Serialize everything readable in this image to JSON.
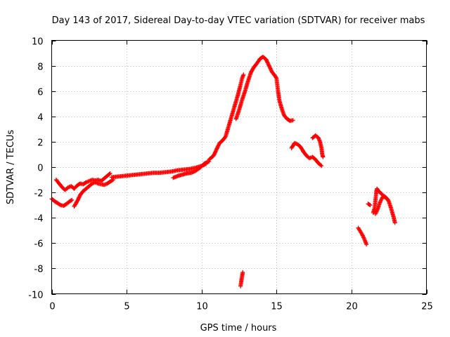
{
  "chart_data": {
    "type": "scatter",
    "title": "Day 143 of 2017, Sidereal Day-to-day VTEC variation (SDTVAR) for receiver mabs",
    "xlabel": "GPS time / hours",
    "ylabel": "SDTVAR / TECUs",
    "xlim": [
      0,
      25
    ],
    "ylim": [
      -10,
      10
    ],
    "xticks": [
      0,
      5,
      10,
      15,
      20,
      25
    ],
    "yticks": [
      -10,
      -8,
      -6,
      -4,
      -2,
      0,
      2,
      4,
      6,
      8,
      10
    ],
    "grid": true,
    "marker": "plus",
    "series": [
      {
        "name": "SDTVAR",
        "color": "#ff0000",
        "segments": [
          [
            [
              0.0,
              -2.5
            ],
            [
              0.2,
              -2.7
            ],
            [
              0.4,
              -2.85
            ],
            [
              0.6,
              -3.0
            ],
            [
              0.8,
              -3.05
            ],
            [
              1.0,
              -2.9
            ],
            [
              1.2,
              -2.7
            ],
            [
              1.35,
              -2.6
            ]
          ],
          [
            [
              0.3,
              -1.0
            ],
            [
              0.5,
              -1.3
            ],
            [
              0.7,
              -1.6
            ],
            [
              0.9,
              -1.8
            ],
            [
              1.1,
              -1.6
            ],
            [
              1.3,
              -1.5
            ],
            [
              1.5,
              -1.7
            ],
            [
              1.7,
              -1.45
            ],
            [
              1.9,
              -1.3
            ],
            [
              2.1,
              -1.35
            ],
            [
              2.3,
              -1.2
            ],
            [
              2.5,
              -1.1
            ],
            [
              2.7,
              -1.0
            ],
            [
              2.9,
              -1.05
            ],
            [
              3.1,
              -1.0
            ],
            [
              3.3,
              -1.1
            ],
            [
              3.5,
              -0.9
            ],
            [
              3.7,
              -0.7
            ],
            [
              3.9,
              -0.5
            ]
          ],
          [
            [
              1.5,
              -3.1
            ],
            [
              1.7,
              -2.7
            ],
            [
              1.9,
              -2.2
            ],
            [
              2.1,
              -1.9
            ],
            [
              2.3,
              -1.7
            ],
            [
              2.5,
              -1.5
            ],
            [
              2.7,
              -1.3
            ],
            [
              2.9,
              -1.2
            ],
            [
              3.1,
              -1.3
            ],
            [
              3.3,
              -1.35
            ],
            [
              3.5,
              -1.4
            ],
            [
              3.7,
              -1.3
            ],
            [
              3.9,
              -1.15
            ],
            [
              4.1,
              -1.0
            ]
          ],
          [
            [
              4.0,
              -0.8
            ],
            [
              4.4,
              -0.75
            ],
            [
              4.8,
              -0.7
            ],
            [
              5.2,
              -0.65
            ],
            [
              5.6,
              -0.6
            ],
            [
              6.0,
              -0.55
            ],
            [
              6.4,
              -0.5
            ],
            [
              6.8,
              -0.45
            ],
            [
              7.2,
              -0.45
            ],
            [
              7.6,
              -0.4
            ],
            [
              8.0,
              -0.35
            ],
            [
              8.4,
              -0.25
            ],
            [
              8.8,
              -0.2
            ],
            [
              9.2,
              -0.15
            ],
            [
              9.6,
              -0.05
            ],
            [
              10.0,
              0.1
            ],
            [
              10.3,
              0.25
            ]
          ],
          [
            [
              8.1,
              -0.85
            ],
            [
              8.4,
              -0.7
            ],
            [
              8.7,
              -0.6
            ],
            [
              9.0,
              -0.5
            ],
            [
              9.3,
              -0.45
            ],
            [
              9.6,
              -0.3
            ],
            [
              9.9,
              -0.05
            ],
            [
              10.2,
              0.3
            ],
            [
              10.5,
              0.45
            ]
          ],
          [
            [
              10.5,
              0.6
            ],
            [
              10.8,
              0.9
            ],
            [
              11.0,
              1.4
            ],
            [
              11.2,
              1.9
            ],
            [
              11.4,
              2.1
            ],
            [
              11.6,
              2.4
            ],
            [
              11.8,
              3.2
            ],
            [
              12.0,
              4.0
            ],
            [
              12.2,
              4.8
            ],
            [
              12.4,
              5.6
            ],
            [
              12.6,
              6.5
            ],
            [
              12.7,
              7.0
            ],
            [
              12.8,
              7.3
            ]
          ],
          [
            [
              12.3,
              3.8
            ],
            [
              12.5,
              4.5
            ],
            [
              12.7,
              5.3
            ],
            [
              12.9,
              6.0
            ],
            [
              13.1,
              6.8
            ],
            [
              13.3,
              7.5
            ],
            [
              13.5,
              7.9
            ],
            [
              13.7,
              8.2
            ],
            [
              13.9,
              8.55
            ],
            [
              14.1,
              8.7
            ],
            [
              14.3,
              8.5
            ],
            [
              14.5,
              8.0
            ],
            [
              14.7,
              7.5
            ],
            [
              14.9,
              7.2
            ],
            [
              15.0,
              7.0
            ],
            [
              15.1,
              6.0
            ],
            [
              15.2,
              5.2
            ],
            [
              15.35,
              4.6
            ],
            [
              15.5,
              4.1
            ],
            [
              15.7,
              3.8
            ],
            [
              15.9,
              3.65
            ],
            [
              16.1,
              3.7
            ]
          ],
          [
            [
              16.0,
              1.5
            ],
            [
              16.2,
              1.9
            ],
            [
              16.4,
              1.8
            ],
            [
              16.6,
              1.6
            ],
            [
              16.8,
              1.2
            ],
            [
              17.0,
              0.9
            ],
            [
              17.2,
              0.7
            ],
            [
              17.4,
              0.8
            ],
            [
              17.6,
              0.6
            ],
            [
              17.8,
              0.3
            ],
            [
              18.0,
              0.1
            ]
          ],
          [
            [
              17.4,
              2.3
            ],
            [
              17.6,
              2.5
            ],
            [
              17.8,
              2.3
            ],
            [
              17.9,
              2.0
            ],
            [
              18.0,
              1.5
            ],
            [
              18.05,
              1.0
            ],
            [
              18.1,
              0.8
            ]
          ],
          [
            [
              12.6,
              -9.4
            ],
            [
              12.65,
              -9.0
            ],
            [
              12.7,
              -8.6
            ],
            [
              12.75,
              -8.3
            ]
          ],
          [
            [
              20.45,
              -4.8
            ],
            [
              20.6,
              -5.1
            ],
            [
              20.75,
              -5.4
            ],
            [
              20.9,
              -5.8
            ],
            [
              21.0,
              -6.1
            ]
          ],
          [
            [
              21.1,
              -2.9
            ],
            [
              21.25,
              -3.0
            ]
          ],
          [
            [
              21.45,
              -3.6
            ],
            [
              21.55,
              -3.2
            ],
            [
              21.6,
              -2.6
            ],
            [
              21.65,
              -2.0
            ],
            [
              21.7,
              -1.7
            ],
            [
              21.8,
              -1.9
            ],
            [
              21.9,
              -2.0
            ],
            [
              22.0,
              -2.1
            ],
            [
              22.15,
              -2.3
            ],
            [
              22.3,
              -2.4
            ],
            [
              22.45,
              -2.6
            ],
            [
              22.6,
              -3.1
            ],
            [
              22.7,
              -3.5
            ],
            [
              22.8,
              -3.9
            ],
            [
              22.9,
              -4.4
            ]
          ],
          [
            [
              21.6,
              -3.7
            ],
            [
              21.75,
              -3.3
            ],
            [
              21.9,
              -2.8
            ],
            [
              22.05,
              -2.4
            ],
            [
              22.2,
              -2.3
            ],
            [
              22.35,
              -2.5
            ]
          ]
        ]
      }
    ]
  }
}
